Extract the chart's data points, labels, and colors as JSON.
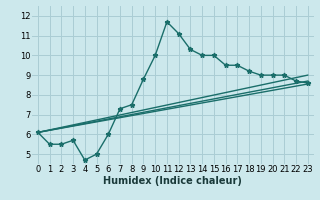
{
  "xlabel": "Humidex (Indice chaleur)",
  "ylabel": "",
  "bg_color": "#cce8ec",
  "grid_color": "#aacdd4",
  "line_color": "#1a6e6a",
  "xlim": [
    -0.5,
    23.5
  ],
  "ylim": [
    4.5,
    12.5
  ],
  "xticks": [
    0,
    1,
    2,
    3,
    4,
    5,
    6,
    7,
    8,
    9,
    10,
    11,
    12,
    13,
    14,
    15,
    16,
    17,
    18,
    19,
    20,
    21,
    22,
    23
  ],
  "yticks": [
    5,
    6,
    7,
    8,
    9,
    10,
    11,
    12
  ],
  "series1_x": [
    0,
    1,
    2,
    3,
    4,
    5,
    6,
    7,
    8,
    9,
    10,
    11,
    12,
    13,
    14,
    15,
    16,
    17,
    18,
    19,
    20,
    21,
    22,
    23
  ],
  "series1_y": [
    6.1,
    5.5,
    5.5,
    5.7,
    4.7,
    5.0,
    6.0,
    7.3,
    7.5,
    8.8,
    10.0,
    11.7,
    11.1,
    10.3,
    10.0,
    10.0,
    9.5,
    9.5,
    9.2,
    9.0,
    9.0,
    9.0,
    8.7,
    8.6
  ],
  "straight_lines": [
    {
      "x": [
        0,
        23
      ],
      "y": [
        6.1,
        8.55
      ]
    },
    {
      "x": [
        0,
        23
      ],
      "y": [
        6.1,
        8.7
      ]
    },
    {
      "x": [
        0,
        23
      ],
      "y": [
        6.1,
        9.0
      ]
    }
  ],
  "line_lw": 1.0,
  "marker": "*",
  "marker_size": 3.5,
  "xlabel_fontsize": 7,
  "tick_fontsize": 6
}
